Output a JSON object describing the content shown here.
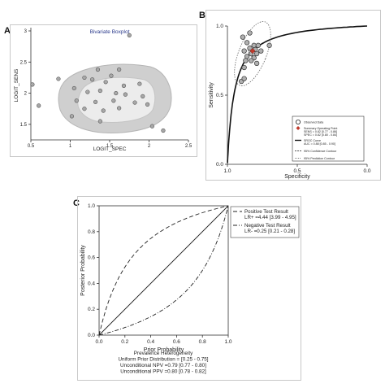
{
  "panels": {
    "a": {
      "label": "A"
    },
    "b": {
      "label": "B"
    },
    "c": {
      "label": "C"
    }
  },
  "chart_data": [
    {
      "type": "scatter",
      "panel": "A",
      "title": "Bivariate Boxplot",
      "xlabel": "LOGIT_SPEC",
      "ylabel": "LOGIT_SENS",
      "xlim": [
        0.5,
        2.5
      ],
      "ylim": [
        1.25,
        3.0
      ],
      "xticks": [
        "0.5",
        "1",
        "1.5",
        "2",
        "2.5"
      ],
      "yticks": [
        "1.5",
        "2",
        "2.5",
        "3"
      ],
      "points": [
        {
          "x": 1.75,
          "y": 2.93
        },
        {
          "x": 0.52,
          "y": 2.14
        },
        {
          "x": 0.85,
          "y": 2.23
        },
        {
          "x": 1.18,
          "y": 2.25
        },
        {
          "x": 1.35,
          "y": 2.38
        },
        {
          "x": 1.62,
          "y": 2.38
        },
        {
          "x": 1.52,
          "y": 2.28
        },
        {
          "x": 1.28,
          "y": 2.22
        },
        {
          "x": 1.45,
          "y": 2.18
        },
        {
          "x": 1.68,
          "y": 2.12
        },
        {
          "x": 1.88,
          "y": 2.15
        },
        {
          "x": 1.05,
          "y": 2.08
        },
        {
          "x": 1.22,
          "y": 2.02
        },
        {
          "x": 1.38,
          "y": 2.04
        },
        {
          "x": 1.58,
          "y": 2.0
        },
        {
          "x": 1.7,
          "y": 1.98
        },
        {
          "x": 1.92,
          "y": 1.95
        },
        {
          "x": 1.08,
          "y": 1.88
        },
        {
          "x": 1.32,
          "y": 1.86
        },
        {
          "x": 1.55,
          "y": 1.88
        },
        {
          "x": 1.82,
          "y": 1.85
        },
        {
          "x": 0.6,
          "y": 1.8
        },
        {
          "x": 1.18,
          "y": 1.75
        },
        {
          "x": 1.42,
          "y": 1.72
        },
        {
          "x": 1.62,
          "y": 1.76
        },
        {
          "x": 1.98,
          "y": 1.82
        },
        {
          "x": 1.02,
          "y": 1.63
        },
        {
          "x": 1.38,
          "y": 1.55
        },
        {
          "x": 2.04,
          "y": 1.47
        },
        {
          "x": 2.18,
          "y": 1.4
        }
      ]
    },
    {
      "type": "scatter",
      "panel": "B",
      "xlabel": "Specificity",
      "ylabel": "Sensitivity",
      "xlim": [
        1.0,
        0.0
      ],
      "ylim": [
        0.0,
        1.0
      ],
      "xticks": [
        "1.0",
        "0.5",
        "0.0"
      ],
      "yticks": [
        "0.0",
        "0.5",
        "1.0"
      ],
      "legend": [
        {
          "label": "Observed Data",
          "marker": "circle"
        },
        {
          "label": "Summary Operating Point",
          "marker": "diamond",
          "color": "#c0392b"
        },
        {
          "label": "SENS = 0.82 [0.77 - 0.86]",
          "marker": "none"
        },
        {
          "label": "SPEC = 0.82 [0.80 - 0.84]",
          "marker": "none"
        },
        {
          "label": "SROC Curve",
          "marker": "solid-line"
        },
        {
          "label": "AUC = 0.88 [0.85 - 0.90]",
          "marker": "none"
        },
        {
          "label": "95% Confidence Contour",
          "marker": "dash-line"
        },
        {
          "label": "95% Prediction Contour",
          "marker": "dot-line"
        }
      ],
      "legend_position": "bottom-right",
      "summary_point": {
        "spec": 0.82,
        "sens": 0.82
      },
      "observed": [
        {
          "spec": 0.84,
          "sens": 0.95
        },
        {
          "spec": 0.89,
          "sens": 0.92
        },
        {
          "spec": 0.7,
          "sens": 0.86
        },
        {
          "spec": 0.86,
          "sens": 0.88
        },
        {
          "spec": 0.81,
          "sens": 0.86
        },
        {
          "spec": 0.78,
          "sens": 0.86
        },
        {
          "spec": 0.84,
          "sens": 0.84
        },
        {
          "spec": 0.8,
          "sens": 0.83
        },
        {
          "spec": 0.76,
          "sens": 0.82
        },
        {
          "spec": 0.88,
          "sens": 0.82
        },
        {
          "spec": 0.83,
          "sens": 0.8
        },
        {
          "spec": 0.79,
          "sens": 0.8
        },
        {
          "spec": 0.86,
          "sens": 0.78
        },
        {
          "spec": 0.81,
          "sens": 0.77
        },
        {
          "spec": 0.87,
          "sens": 0.75
        },
        {
          "spec": 0.83,
          "sens": 0.75
        },
        {
          "spec": 0.79,
          "sens": 0.73
        },
        {
          "spec": 0.88,
          "sens": 0.7
        },
        {
          "spec": 0.9,
          "sens": 0.6
        },
        {
          "spec": 0.88,
          "sens": 0.62
        }
      ]
    },
    {
      "type": "line",
      "panel": "C",
      "xlabel": "Prior Probability",
      "ylabel": "Posterior Probability",
      "xlim": [
        0,
        1
      ],
      "ylim": [
        0,
        1
      ],
      "xticks": [
        "0.0",
        "0.2",
        "0.4",
        "0.6",
        "0.8",
        "1.0"
      ],
      "yticks": [
        "0.0",
        "0.2",
        "0.4",
        "0.6",
        "0.8",
        "1.0"
      ],
      "series": [
        {
          "name": "Positive Test Result",
          "detail": "LR+ =4.44 [3.99 - 4.95]",
          "lr": 4.44,
          "style": "dash"
        },
        {
          "name": "Negative Test Result",
          "detail": "LR- =0.25 [0.21 - 0.28]",
          "lr": 0.25,
          "style": "dashdot"
        }
      ],
      "legend_position": "top-right",
      "annotations": [
        "Prevalence Heterogeneity",
        "Uniform Prior Distribution = [0.25 - 0.75]",
        "Unconditional NPV =0.79 [0.77 - 0.80]",
        "Unconditional PPV =0.80 [0.78 - 0.82]"
      ]
    }
  ]
}
